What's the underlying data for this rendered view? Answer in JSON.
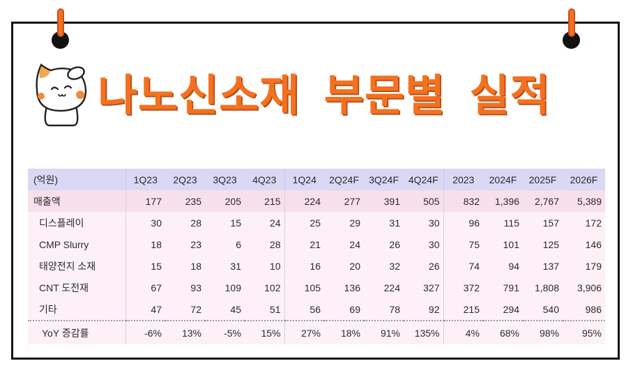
{
  "colors": {
    "accent": "#f47120",
    "frame": "#141414",
    "header_bg": "#dad8f4",
    "total_row_bg": "#f7e0eb",
    "row_bg": "#fdf1f7"
  },
  "icons": {
    "mascot": "cat-mascot-icon",
    "pin": "pushpin-icon"
  },
  "chart_data": {
    "type": "table",
    "title": "나노신소재 부문별 실적",
    "unit": "(억원)",
    "columns": [
      "1Q23",
      "2Q23",
      "3Q23",
      "4Q23",
      "1Q24",
      "2Q24F",
      "3Q24F",
      "4Q24F",
      "2023",
      "2024F",
      "2025F",
      "2026F"
    ],
    "rows": [
      {
        "label": "매출액",
        "values": [
          "177",
          "235",
          "205",
          "215",
          "224",
          "277",
          "391",
          "505",
          "832",
          "1,396",
          "2,767",
          "5,389"
        ]
      },
      {
        "label": "디스플레이",
        "values": [
          "30",
          "28",
          "15",
          "24",
          "25",
          "29",
          "31",
          "30",
          "96",
          "115",
          "157",
          "172"
        ]
      },
      {
        "label": "CMP Slurry",
        "values": [
          "18",
          "23",
          "6",
          "28",
          "21",
          "24",
          "26",
          "30",
          "75",
          "101",
          "125",
          "146"
        ]
      },
      {
        "label": "태양전지 소재",
        "values": [
          "15",
          "18",
          "31",
          "10",
          "16",
          "20",
          "32",
          "26",
          "74",
          "94",
          "137",
          "179"
        ]
      },
      {
        "label": "CNT 도전재",
        "values": [
          "67",
          "93",
          "109",
          "102",
          "105",
          "136",
          "224",
          "327",
          "372",
          "791",
          "1,808",
          "3,906"
        ]
      },
      {
        "label": "기타",
        "values": [
          "47",
          "72",
          "45",
          "51",
          "56",
          "69",
          "78",
          "92",
          "215",
          "294",
          "540",
          "986"
        ]
      },
      {
        "label": "YoY 증감률",
        "values": [
          "-6%",
          "13%",
          "-5%",
          "15%",
          "27%",
          "18%",
          "91%",
          "135%",
          "4%",
          "68%",
          "98%",
          "95%"
        ]
      }
    ]
  }
}
